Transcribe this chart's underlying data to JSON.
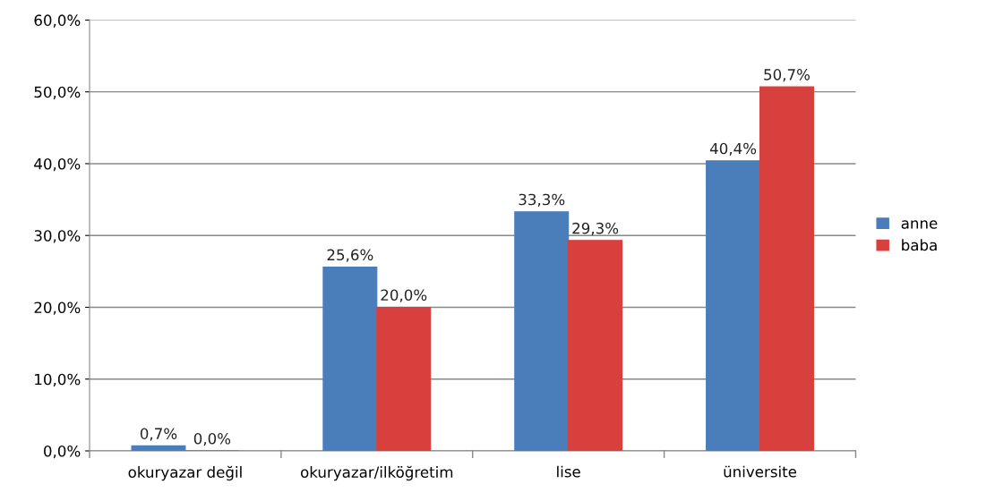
{
  "chart_data": {
    "type": "bar",
    "categories": [
      "okuryazar değil",
      "okuryazar/ilköğretim",
      "lise",
      "üniversite"
    ],
    "series": [
      {
        "name": "anne",
        "color": "#4a7ebb",
        "values": [
          0.7,
          25.6,
          33.3,
          40.4
        ],
        "value_labels": [
          "0,7%",
          "25,6%",
          "33,3%",
          "40,4%"
        ]
      },
      {
        "name": "baba",
        "color": "#d7403c",
        "values": [
          0.0,
          20.0,
          29.3,
          50.7
        ],
        "value_labels": [
          "0,0%",
          "20,0%",
          "29,3%",
          "50,7%"
        ]
      }
    ],
    "ylim": [
      0,
      60
    ],
    "yticks": [
      {
        "value": 0,
        "label": "0,0%"
      },
      {
        "value": 10,
        "label": "10,0%"
      },
      {
        "value": 20,
        "label": "20,0%"
      },
      {
        "value": 30,
        "label": "30,0%"
      },
      {
        "value": 40,
        "label": "40,0%"
      },
      {
        "value": 50,
        "label": "50,0%"
      },
      {
        "value": 60,
        "label": "60,0%"
      }
    ],
    "grid": "y",
    "legend": "right"
  }
}
